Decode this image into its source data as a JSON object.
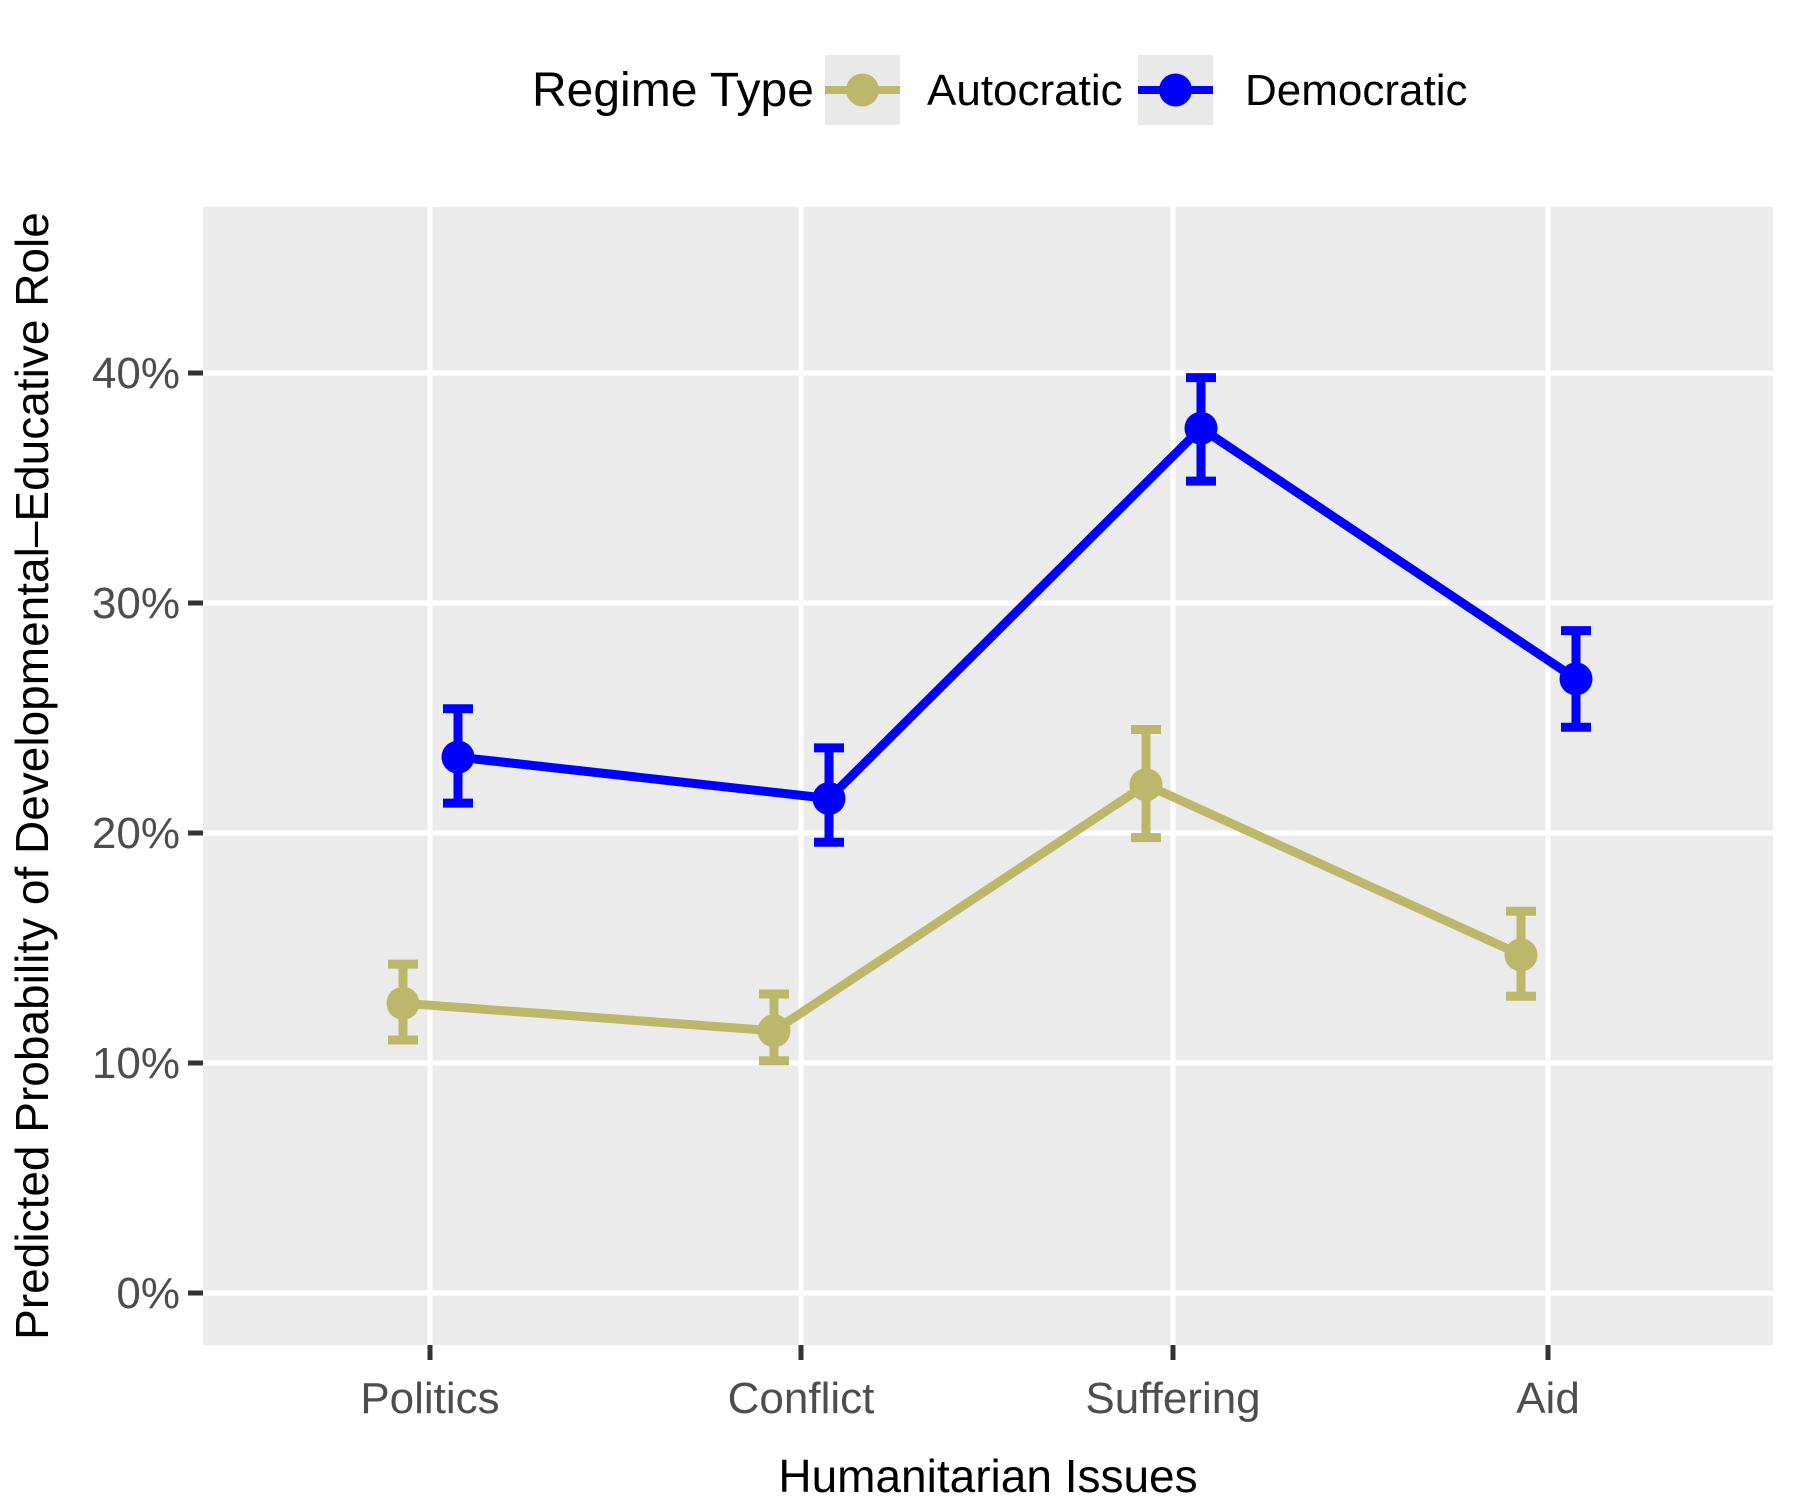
{
  "chart_data": {
    "type": "line",
    "title": "",
    "xlabel": "Humanitarian Issues",
    "ylabel": "Predicted Probability of Developmental–Educative Role",
    "legend_title": "Regime Type",
    "legend_position": "top",
    "categories": [
      "Politics",
      "Conflict",
      "Suffering",
      "Aid"
    ],
    "y_ticks": [
      "0%",
      "10%",
      "20%",
      "30%",
      "40%"
    ],
    "y_tick_values": [
      0,
      10,
      20,
      30,
      40
    ],
    "ylim": [
      -2.3,
      47.2
    ],
    "grid": "major-only-white-on-gray",
    "units": "percent",
    "series": [
      {
        "name": "Autocratic",
        "color": "#BDB76B",
        "values": [
          12.6,
          11.4,
          22.1,
          14.7
        ],
        "ci_low": [
          11.0,
          10.1,
          19.8,
          12.9
        ],
        "ci_high": [
          14.3,
          13.0,
          24.5,
          16.6
        ]
      },
      {
        "name": "Democratic",
        "color": "#0000FF",
        "values": [
          23.3,
          21.5,
          37.6,
          26.7
        ],
        "ci_low": [
          21.3,
          19.6,
          35.3,
          24.6
        ],
        "ci_high": [
          25.4,
          23.7,
          39.8,
          28.8
        ]
      }
    ],
    "style_colors": {
      "panel_background": "#EBEBEB",
      "gridline": "#FFFFFF",
      "tick_mark": "#333333",
      "tick_label": "#4D4D4D",
      "axis_title": "#000000",
      "legend_key_background": "#E9E9E9",
      "legend_text": "#000000"
    }
  }
}
